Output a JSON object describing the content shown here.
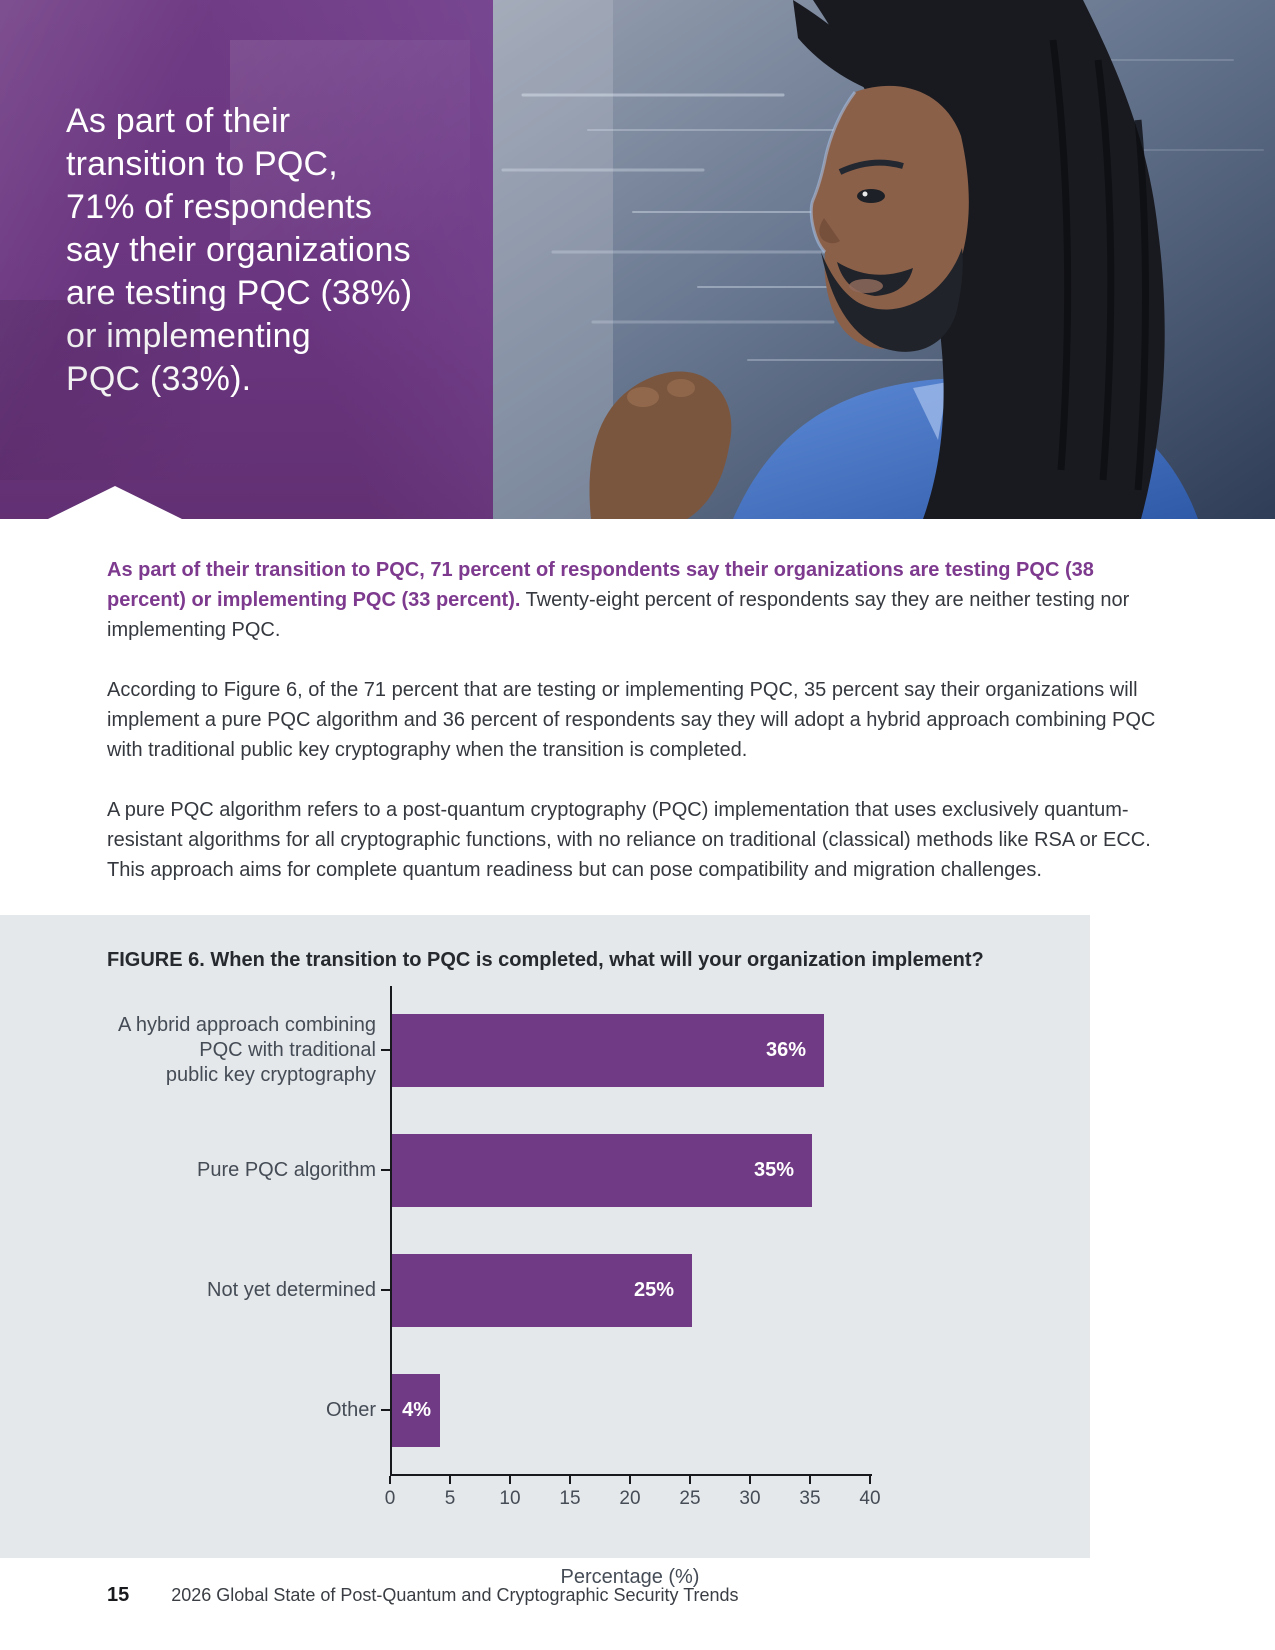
{
  "colors": {
    "hero_purple": "#6b3680",
    "bar_purple": "#713a85",
    "panel_bg": "#e4e8ea",
    "accent_purple": "#7d3a8e",
    "axis": "#17191d",
    "label_slate": "#454c56",
    "body_text": "#35393f"
  },
  "hero": {
    "headline": "As part of their\ntransition to PQC,\n71% of respondents\nsay their organizations\nare testing PQC (38%)\nor implementing\nPQC (33%)."
  },
  "paragraphs": {
    "p1_bold": "As part of their transition to PQC, 71 percent of respondents say their organizations are testing PQC (38 percent) or implementing PQC (33 percent).",
    "p1_rest": " Twenty-eight percent of respondents say they are neither testing nor implementing PQC.",
    "p2": "According to Figure 6, of the 71 percent that are testing or implementing PQC, 35 percent say their organizations will implement a pure PQC algorithm and 36 percent of respondents say they will adopt a hybrid approach combining PQC with traditional public key cryptography when the transition is completed.",
    "p3": "A pure PQC algorithm refers to a post-quantum cryptography (PQC) implementation that uses exclusively quantum-resistant algorithms for all cryptographic functions, with no reliance on traditional (classical) methods like RSA or ECC. This approach aims for complete quantum readiness but can pose compatibility and migration challenges."
  },
  "figure": {
    "title": "FIGURE 6. When the transition to PQC is completed, what will your organization implement?"
  },
  "chart_data": {
    "type": "bar",
    "orientation": "horizontal",
    "title": "FIGURE 6. When the transition to PQC is completed, what will your organization implement?",
    "categories": [
      "A hybrid approach combining\nPQC with traditional\npublic key cryptography",
      "Pure PQC algorithm",
      "Not yet determined",
      "Other"
    ],
    "values": [
      36,
      35,
      25,
      4
    ],
    "value_labels": [
      "36%",
      "35%",
      "25%",
      "4%"
    ],
    "xlabel": "Percentage (%)",
    "ylabel": "",
    "xlim": [
      0,
      40
    ],
    "x_ticks": [
      0,
      5,
      10,
      15,
      20,
      25,
      30,
      35,
      40
    ],
    "bar_color": "#713a85",
    "grid": false,
    "legend_position": "none"
  },
  "footer": {
    "page_number": "15",
    "report_title": "2026 Global State of Post-Quantum and Cryptographic Security Trends"
  }
}
